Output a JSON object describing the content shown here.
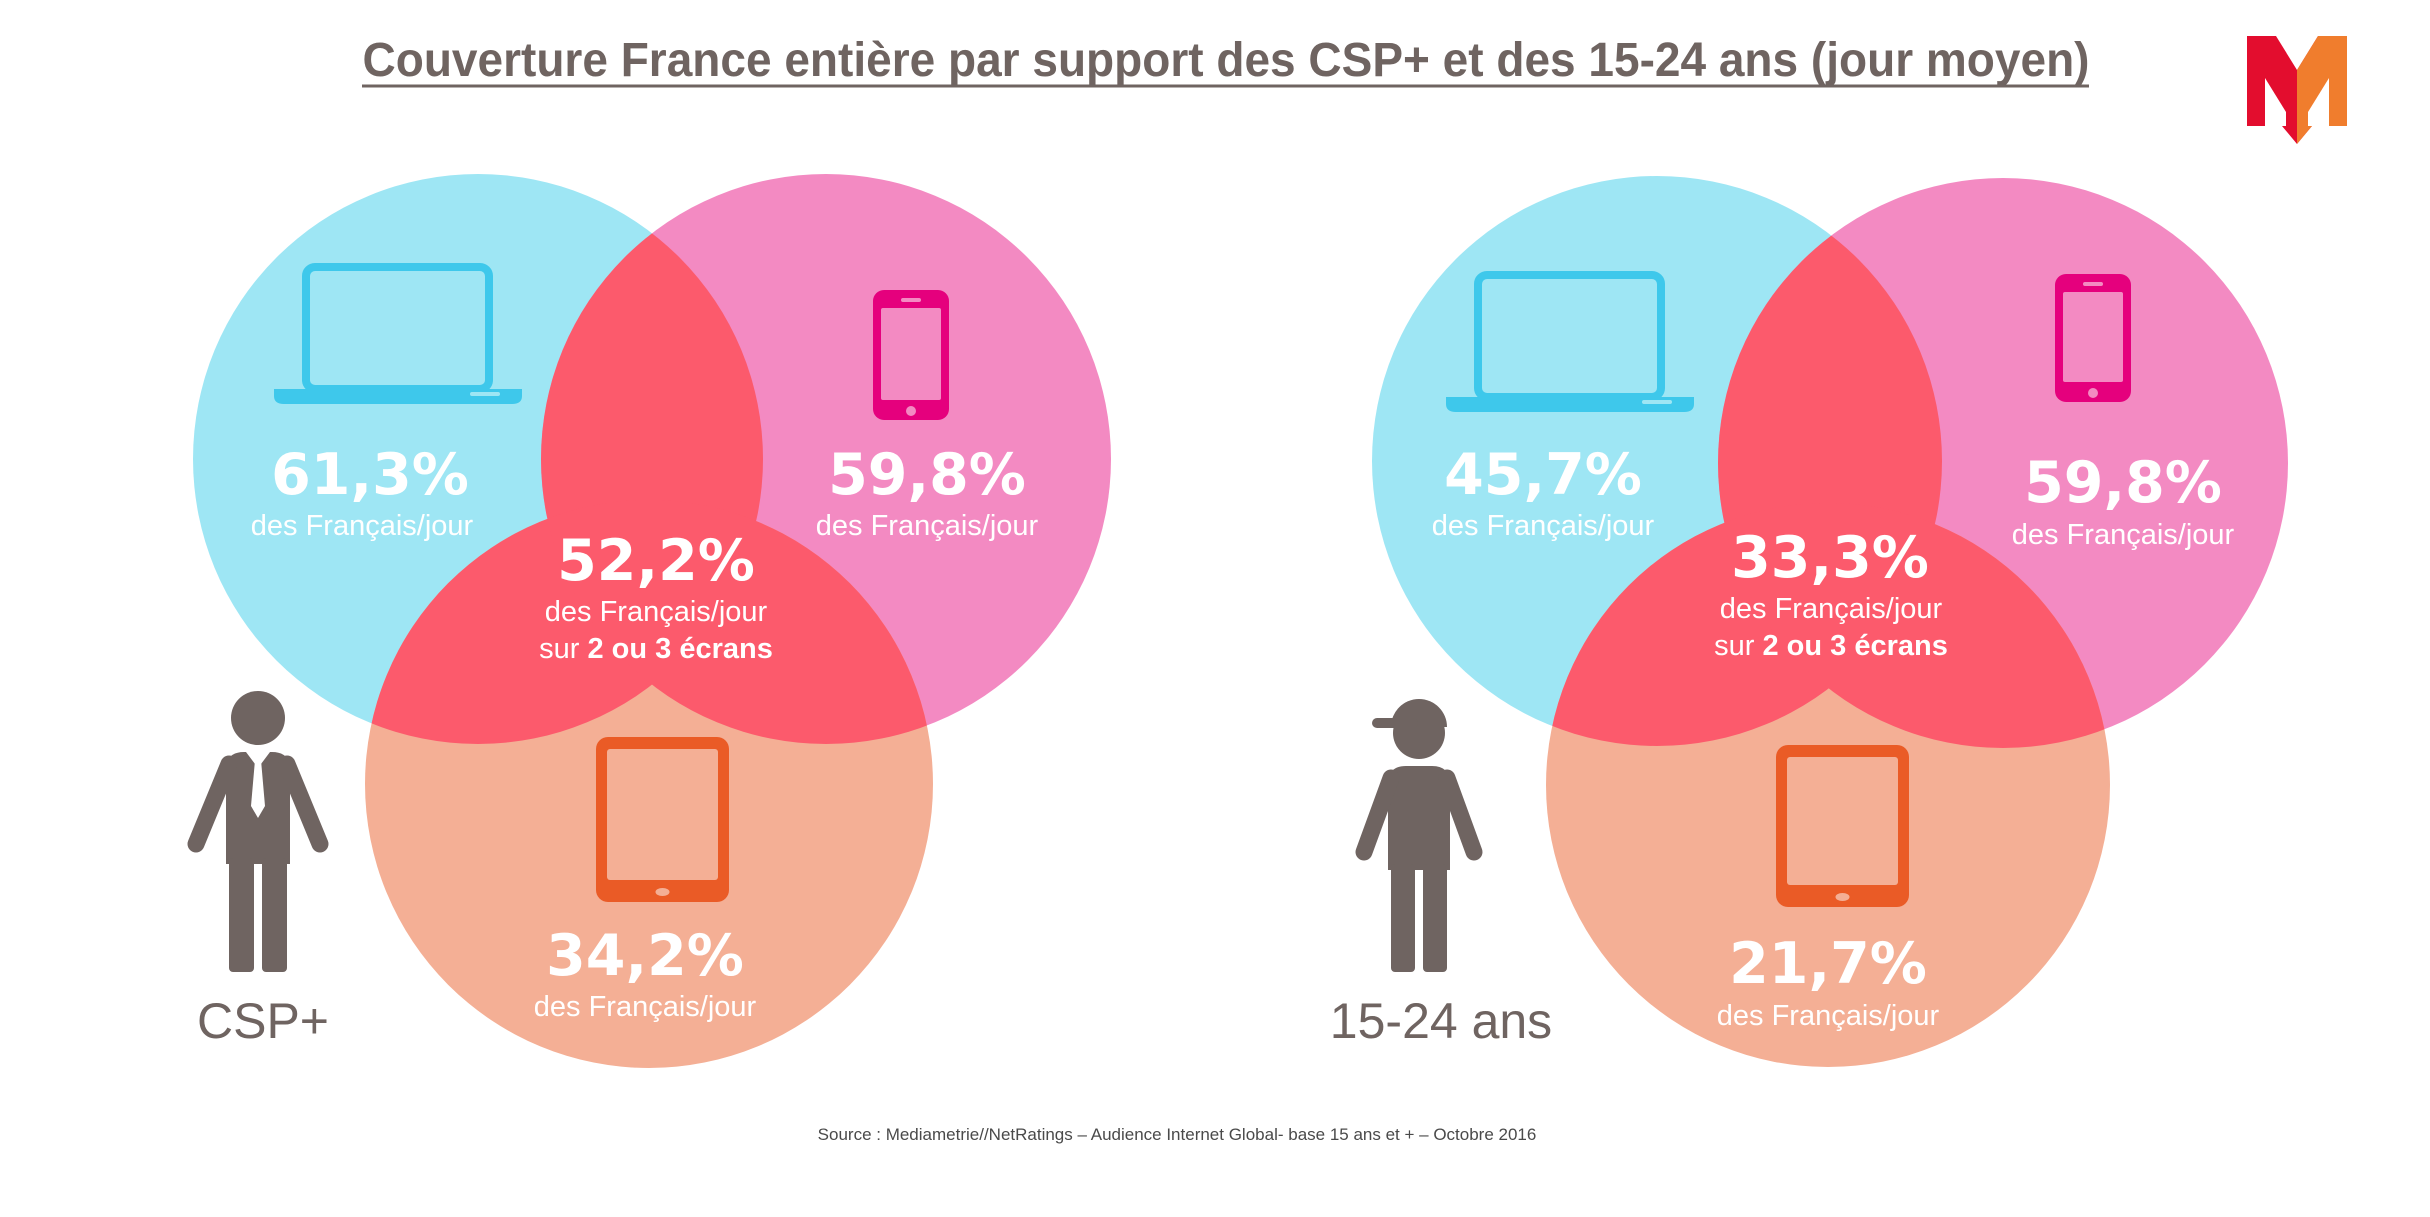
{
  "title": "Couverture France entière par support des CSP+ et des 15-24 ans (jour moyen)",
  "logo": {
    "lettering": "M",
    "red": "#e30d2e",
    "orange": "#f07d2d"
  },
  "colors": {
    "computer": "#9ee6f4",
    "smartphone": "#f38ac2",
    "tablet": "#f4af95",
    "overlap": "#fc5a6c",
    "computer_icon": "#3ec8eb",
    "smartphone_icon": "#e5007d",
    "tablet_icon": "#ea5b26",
    "text_dark": "#6f6461",
    "white": "#ffffff"
  },
  "icons": {
    "computer": "laptop-icon",
    "smartphone": "smartphone-icon",
    "tablet": "tablet-icon",
    "audience_csp": "businessman-icon",
    "audience_young": "young-person-icon"
  },
  "panels": [
    {
      "audience": "CSP+",
      "computer": {
        "value": "61,3%",
        "caption": "des Français/jour"
      },
      "smartphone": {
        "value": "59,8%",
        "caption": "des Français/jour"
      },
      "tablet": {
        "value": "34,2%",
        "caption": "des Français/jour"
      },
      "multi_screen": {
        "value": "52,2%",
        "caption": "des Français/jour",
        "prefix": "sur",
        "emphasis": "2 ou 3 écrans"
      }
    },
    {
      "audience": "15-24 ans",
      "computer": {
        "value": "45,7%",
        "caption": "des Français/jour"
      },
      "smartphone": {
        "value": "59,8%",
        "caption": "des Français/jour"
      },
      "tablet": {
        "value": "21,7%",
        "caption": "des Français/jour"
      },
      "multi_screen": {
        "value": "33,3%",
        "caption": "des Français/jour",
        "prefix": "sur",
        "emphasis": "2 ou 3 écrans"
      }
    }
  ],
  "source": "Source : Mediametrie//NetRatings – Audience Internet Global- base 15 ans et + – Octobre 2016"
}
